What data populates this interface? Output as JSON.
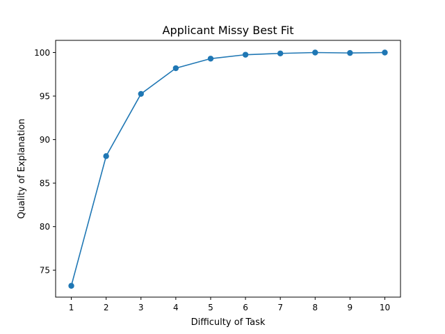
{
  "chart_data": {
    "type": "line",
    "title": "Applicant Missy Best Fit",
    "xlabel": "Difficulty of Task",
    "ylabel": "Quality of Explanation",
    "x": [
      1,
      2,
      3,
      4,
      5,
      6,
      7,
      8,
      9,
      10
    ],
    "series": [
      {
        "values": [
          73.2,
          88.1,
          95.25,
          98.2,
          99.3,
          99.75,
          99.9,
          100.0,
          99.95,
          100.0
        ],
        "color": "#1f77b4",
        "marker": "circle"
      }
    ],
    "xlim": [
      0.55,
      10.45
    ],
    "ylim": [
      71.9,
      101.4
    ],
    "xticks": [
      "1",
      "2",
      "3",
      "4",
      "5",
      "6",
      "7",
      "8",
      "9",
      "10"
    ],
    "yticks": [
      "75",
      "80",
      "85",
      "90",
      "95",
      "100"
    ],
    "grid": false,
    "legend": "none"
  }
}
